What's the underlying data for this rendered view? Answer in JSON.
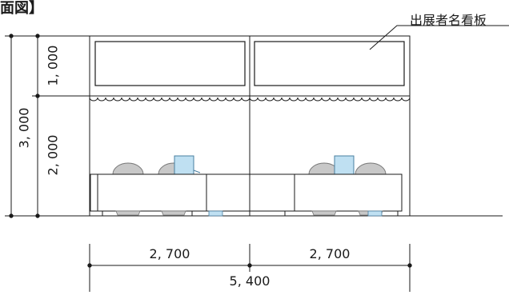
{
  "title": "面図】",
  "sign_label": "出展者名看板",
  "dimensions": {
    "signboard_height": "1, 000",
    "lower_height": "2, 000",
    "total_height": "3, 000",
    "booth_left_width": "2, 700",
    "booth_right_width": "2, 700",
    "total_width": "5, 400"
  },
  "colors": {
    "line": "#1a1a1a",
    "chair_fill": "#c8c8c8",
    "chair_stroke": "#777777",
    "monitor_fill": "#bfe0f2",
    "monitor_stroke": "#4a7fa0",
    "table_fill": "#ffffff"
  }
}
